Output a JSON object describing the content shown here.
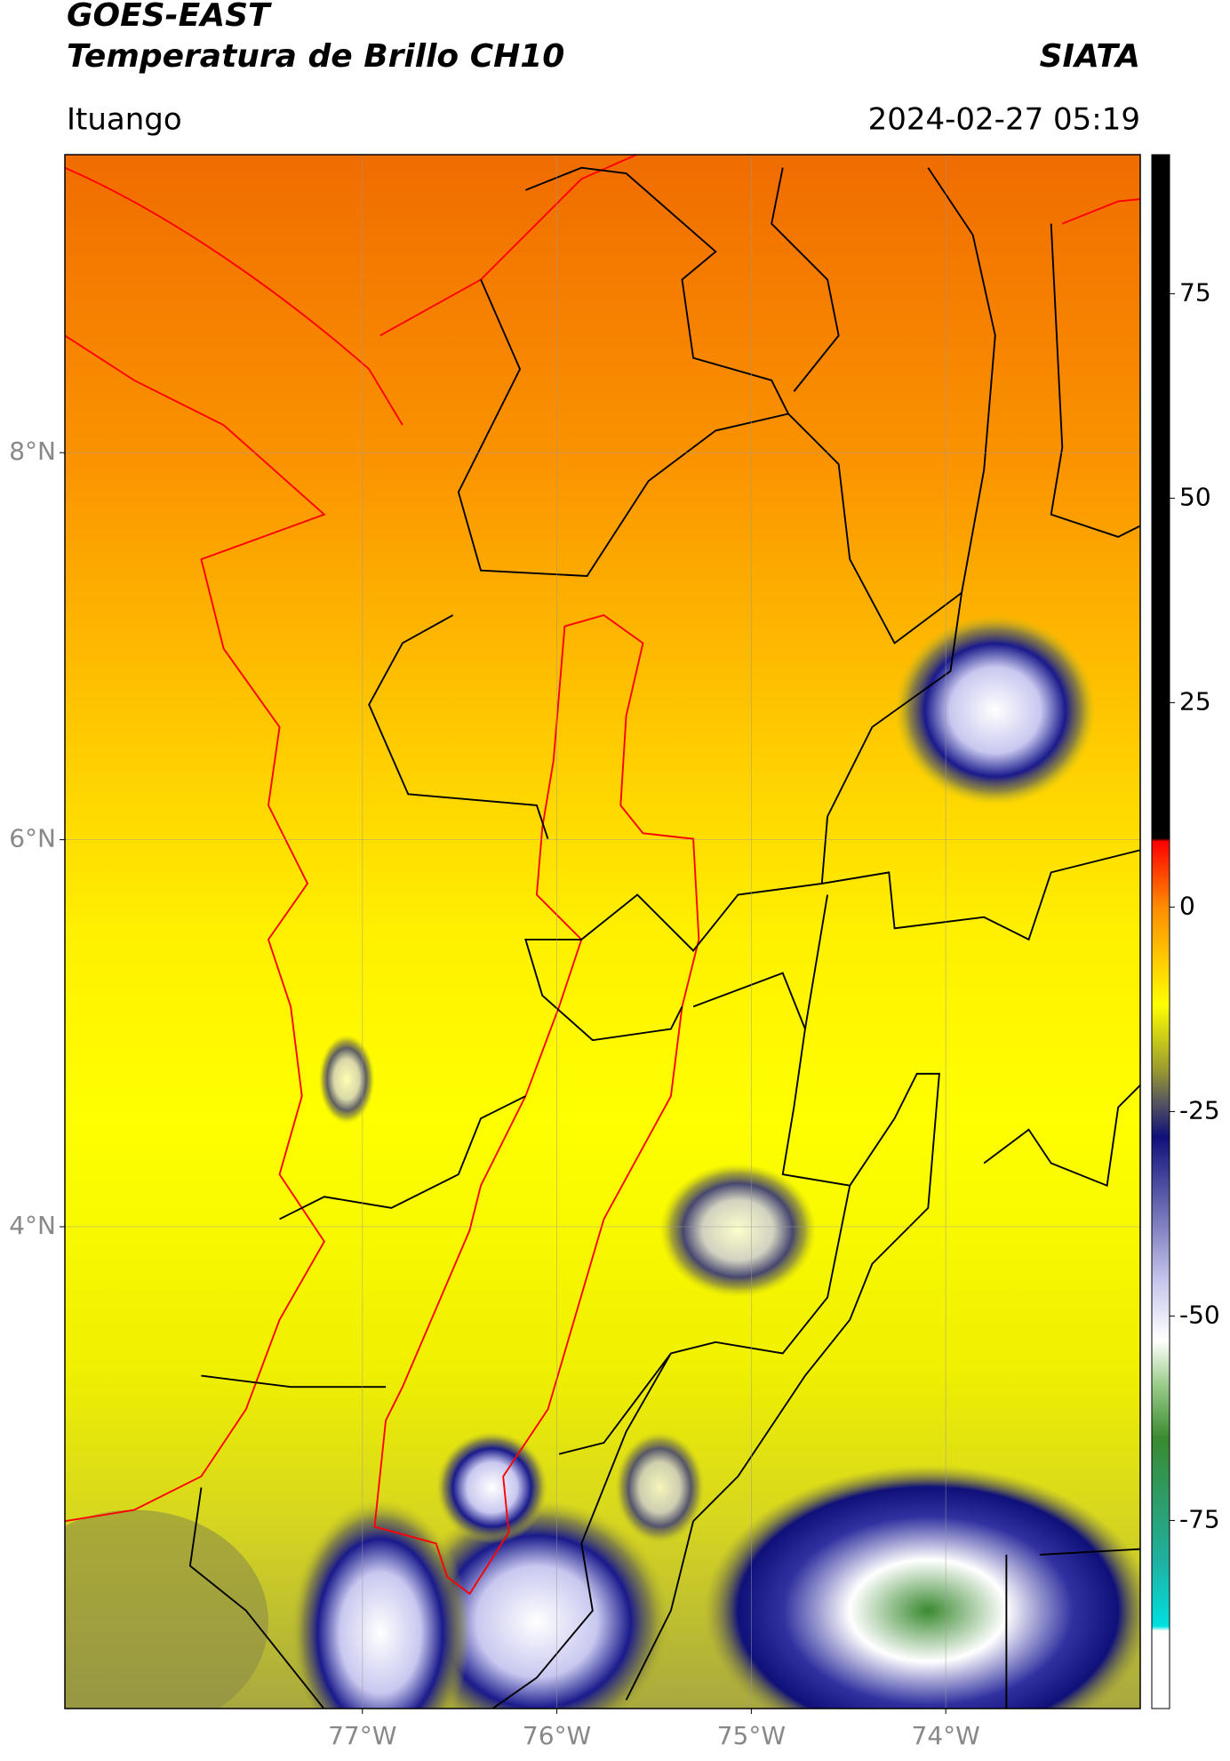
{
  "header": {
    "title": "GOES-EAST",
    "subtitle": "Temperatura de Brillo CH10",
    "source": "SIATA",
    "location": "Ituango",
    "datetime": "2024-02-27 05:19"
  },
  "map": {
    "xlim": [
      -78.53,
      -73.0
    ],
    "ylim": [
      1.51,
      9.54
    ],
    "xticks": [
      {
        "value": -77,
        "label": "77°W"
      },
      {
        "value": -76,
        "label": "76°W"
      },
      {
        "value": -75,
        "label": "75°W"
      },
      {
        "value": -74,
        "label": "74°W"
      }
    ],
    "yticks": [
      {
        "value": 8,
        "label": "8°N"
      },
      {
        "value": 6,
        "label": "6°N"
      },
      {
        "value": 4,
        "label": "4°N"
      }
    ],
    "grid": true
  },
  "colorbar": {
    "lim": [
      -98,
      92
    ],
    "ticks": [
      -75,
      -50,
      -25,
      0,
      25,
      50,
      75
    ]
  }
}
